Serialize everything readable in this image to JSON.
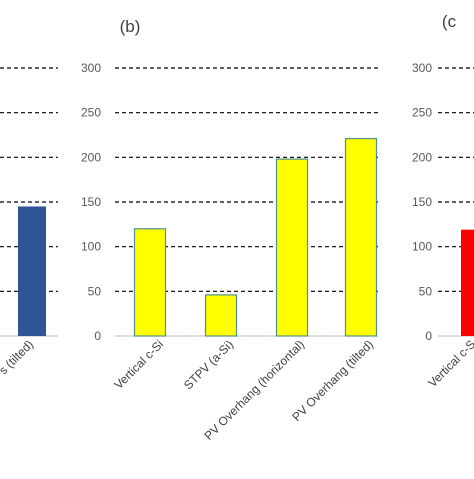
{
  "chart_data": [
    {
      "panel_label": "",
      "type": "bar",
      "categories": [
        "PV Overhang (tilted)"
      ],
      "category_labels_shown": [
        "s (tilted)"
      ],
      "values": [
        145
      ],
      "bar_color": "#2f5597",
      "ylim": [
        0,
        300
      ],
      "yticks": [
        0,
        50,
        100,
        150,
        200,
        250,
        300
      ],
      "grid": true,
      "grid_style": "dashed",
      "note": "panel (a) partially cropped at left edge"
    },
    {
      "panel_label": "(b)",
      "type": "bar",
      "categories": [
        "Vertical c-Si",
        "STPV (a-Si)",
        "PV Overhang (horizontal)",
        "PV Overhang (tilted)"
      ],
      "values": [
        120,
        46,
        198,
        221
      ],
      "bar_color": "#ffff00",
      "bar_edge_color": "#4f8f8f",
      "ylim": [
        0,
        300
      ],
      "yticks": [
        0,
        50,
        100,
        150,
        200,
        250,
        300
      ],
      "grid": true,
      "grid_style": "dashed"
    },
    {
      "panel_label": "(c",
      "type": "bar",
      "categories": [
        "Vertical c-Si"
      ],
      "category_labels_shown": [
        "Vertical c-S"
      ],
      "values": [
        119
      ],
      "bar_color": "#ff0000",
      "ylim": [
        0,
        300
      ],
      "yticks": [
        0,
        50,
        100,
        150,
        200,
        250,
        300
      ],
      "grid": true,
      "grid_style": "dashed",
      "note": "panel (c) partially cropped at right edge"
    }
  ]
}
